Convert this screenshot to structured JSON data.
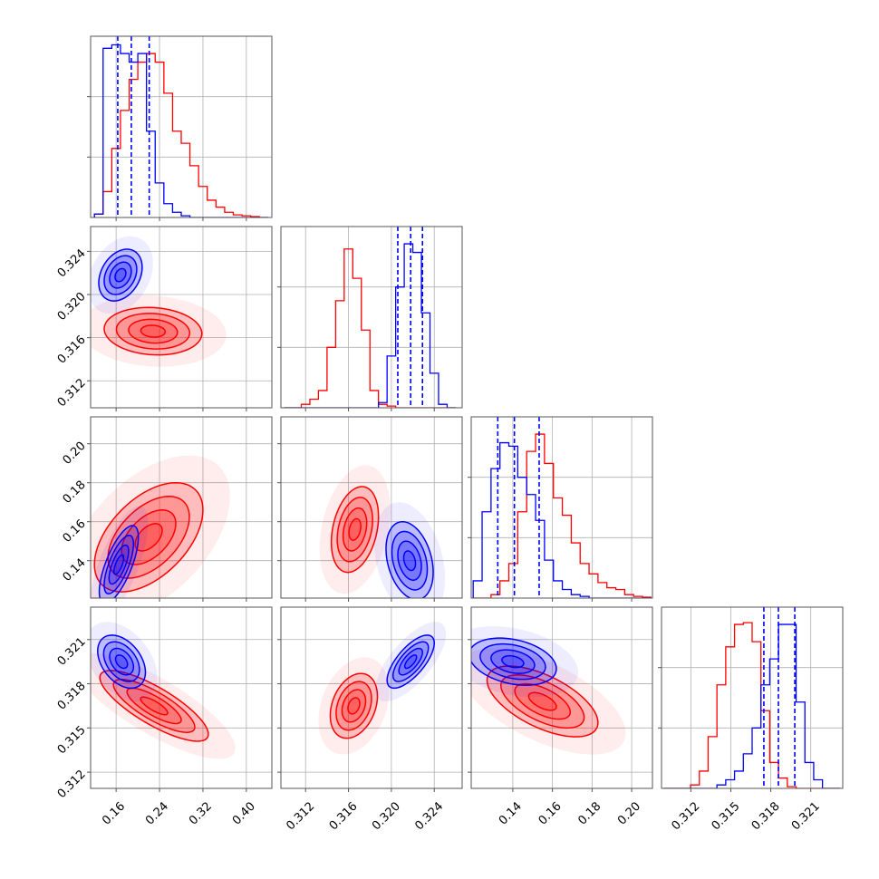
{
  "chart_data": {
    "type": "corner",
    "grid": true,
    "params": [
      {
        "xlim": [
          0.113,
          0.447
        ],
        "ylim": [
          0.113,
          0.447
        ],
        "ticks": [
          0.16,
          0.24,
          0.32,
          {
            "value": 0.4,
            "label": "0.40"
          }
        ]
      },
      {
        "xlim": [
          0.3097,
          0.3266
        ],
        "ylim": [
          0.3095,
          0.3263
        ],
        "ticks": [
          0.312,
          0.316,
          {
            "value": 0.32,
            "label": "0.320"
          },
          0.324
        ]
      },
      {
        "xlim": [
          0.119,
          0.2105
        ],
        "ylim": [
          0.1208,
          0.2138
        ],
        "ticks": [
          0.14,
          0.16,
          0.18,
          {
            "value": 0.2,
            "label": "0.20"
          }
        ]
      },
      {
        "xlim": [
          0.3098,
          0.3234
        ],
        "ylim": [
          0.3109,
          0.3232
        ],
        "ticks": [
          0.312,
          0.315,
          0.318,
          0.321
        ]
      }
    ],
    "hist": [
      {
        "bins": [
          0.12,
          0.136,
          0.152,
          0.168,
          0.184,
          0.2,
          0.216,
          0.232,
          0.248,
          0.264,
          0.28,
          0.296,
          0.312,
          0.328,
          0.344,
          0.36,
          0.376,
          0.392,
          0.408,
          0.424,
          0.44
        ],
        "ylim": [
          0,
          1.05
        ],
        "yticks": [
          0.35,
          0.7
        ],
        "series": [
          {
            "color": "#ff0000",
            "values": [
              0.02,
              0.15,
              0.4,
              0.62,
              0.8,
              0.9,
              0.95,
              0.9,
              0.72,
              0.5,
              0.43,
              0.3,
              0.18,
              0.1,
              0.06,
              0.03,
              0.015,
              0.01,
              0.005,
              0
            ]
          },
          {
            "color": "#0000ff",
            "values": [
              0.02,
              0.98,
              1.0,
              0.95,
              0.9,
              0.95,
              0.5,
              0.2,
              0.08,
              0.03,
              0.01,
              0,
              0,
              0,
              0,
              0,
              0,
              0,
              0,
              0
            ]
          }
        ],
        "quantiles": {
          "color": "#0000ff",
          "values": [
            0.163,
            0.188,
            0.221
          ]
        }
      },
      {
        "bins": [
          0.31,
          0.3108,
          0.3116,
          0.3124,
          0.3132,
          0.314,
          0.3148,
          0.3156,
          0.3164,
          0.3172,
          0.318,
          0.3188,
          0.3196,
          0.3204,
          0.3212,
          0.322,
          0.3228,
          0.3236,
          0.3244,
          0.3252,
          0.326
        ],
        "ylim": [
          0,
          1.05
        ],
        "yticks": [
          0.35,
          0.7
        ],
        "series": [
          {
            "color": "#ff0000",
            "values": [
              0,
              0,
              0.02,
              0.05,
              0.1,
              0.35,
              0.62,
              0.92,
              0.75,
              0.45,
              0.1,
              0.02,
              0.01,
              0,
              0,
              0,
              0,
              0,
              0,
              0
            ]
          },
          {
            "color": "#0000ff",
            "values": [
              0,
              0,
              0,
              0,
              0,
              0,
              0,
              0,
              0,
              0,
              0,
              0.03,
              0.3,
              0.7,
              0.95,
              0.9,
              0.55,
              0.2,
              0.02,
              0
            ]
          }
        ],
        "quantiles": {
          "color": "#0000ff",
          "values": [
            0.3206,
            0.3218,
            0.3229
          ]
        }
      },
      {
        "bins": [
          0.12,
          0.1245,
          0.129,
          0.1335,
          0.138,
          0.1425,
          0.147,
          0.1515,
          0.156,
          0.1605,
          0.165,
          0.1695,
          0.174,
          0.1785,
          0.183,
          0.1875,
          0.192,
          0.1965,
          0.201,
          0.2055,
          0.21
        ],
        "ylim": [
          0,
          1.05
        ],
        "yticks": [
          0.35,
          0.7
        ],
        "series": [
          {
            "color": "#ff0000",
            "values": [
              0,
              0,
              0.02,
              0.1,
              0.2,
              0.5,
              0.85,
              0.95,
              0.78,
              0.58,
              0.48,
              0.32,
              0.2,
              0.14,
              0.09,
              0.06,
              0.05,
              0.02,
              0.01,
              0.005
            ]
          },
          {
            "color": "#0000ff",
            "values": [
              0.1,
              0.5,
              0.75,
              0.9,
              0.88,
              0.7,
              0.6,
              0.45,
              0.22,
              0.1,
              0.05,
              0.02,
              0.01,
              0,
              0,
              0,
              0,
              0,
              0,
              0
            ]
          }
        ],
        "quantiles": {
          "color": "#0000ff",
          "values": [
            0.1324,
            0.1408,
            0.1533
          ]
        }
      },
      {
        "bins": [
          0.31,
          0.31066,
          0.31132,
          0.31198,
          0.31264,
          0.3133,
          0.31396,
          0.31462,
          0.31528,
          0.31594,
          0.3166,
          0.31726,
          0.31792,
          0.31858,
          0.31924,
          0.3199,
          0.32056,
          0.32122,
          0.32188,
          0.32254,
          0.3232
        ],
        "ylim": [
          0,
          1.05
        ],
        "yticks": [
          0.35,
          0.7
        ],
        "series": [
          {
            "color": "#ff0000",
            "values": [
              0,
              0,
              0,
              0.02,
              0.1,
              0.3,
              0.6,
              0.82,
              0.95,
              0.96,
              0.85,
              0.45,
              0.15,
              0.06,
              0.01,
              0,
              0,
              0,
              0,
              0
            ]
          },
          {
            "color": "#0000ff",
            "values": [
              0,
              0,
              0,
              0,
              0,
              0,
              0.02,
              0.05,
              0.1,
              0.2,
              0.35,
              0.6,
              0.75,
              0.95,
              0.95,
              0.5,
              0.15,
              0.05,
              0,
              0
            ]
          }
        ],
        "quantiles": {
          "color": "#0000ff",
          "values": [
            0.31748,
            0.31857,
            0.3198
          ]
        }
      }
    ],
    "levels": [
      0.5,
      1,
      1.5,
      2
    ],
    "cloud_sigma": 3,
    "pairs": [
      {
        "x_param": 0,
        "y_param": 1,
        "series": [
          {
            "color": "#ff0000",
            "mean": [
              0.228,
              0.3166
            ],
            "sd": [
              0.045,
              0.0011
            ],
            "rho": -0.1
          },
          {
            "color": "#0000ff",
            "mean": [
              0.168,
              0.3218
            ],
            "sd": [
              0.02,
              0.0012
            ],
            "rho": 0.3
          }
        ]
      },
      {
        "x_param": 0,
        "y_param": 2,
        "series": [
          {
            "color": "#ff0000",
            "mean": [
              0.22,
              0.152
            ],
            "sd": [
              0.05,
              0.014
            ],
            "rho": 0.5
          },
          {
            "color": "#0000ff",
            "mean": [
              0.165,
              0.138
            ],
            "sd": [
              0.018,
              0.01
            ],
            "rho": 0.7
          }
        ]
      },
      {
        "x_param": 0,
        "y_param": 3,
        "series": [
          {
            "color": "#ff0000",
            "mean": [
              0.23,
              0.3165
            ],
            "sd": [
              0.05,
              0.0012
            ],
            "rho": -0.8
          },
          {
            "color": "#0000ff",
            "mean": [
              0.17,
              0.3195
            ],
            "sd": [
              0.022,
              0.0009
            ],
            "rho": -0.4
          }
        ]
      },
      {
        "x_param": 1,
        "y_param": 2,
        "series": [
          {
            "color": "#ff0000",
            "mean": [
              0.3166,
              0.156
            ],
            "sd": [
              0.0011,
              0.011
            ],
            "rho": 0.3
          },
          {
            "color": "#0000ff",
            "mean": [
              0.3217,
              0.14
            ],
            "sd": [
              0.0011,
              0.01
            ],
            "rho": -0.3
          }
        ]
      },
      {
        "x_param": 1,
        "y_param": 3,
        "series": [
          {
            "color": "#ff0000",
            "mean": [
              0.3165,
              0.3165
            ],
            "sd": [
              0.0011,
              0.0011
            ],
            "rho": 0.3
          },
          {
            "color": "#0000ff",
            "mean": [
              0.3218,
              0.3195
            ],
            "sd": [
              0.0011,
              0.0009
            ],
            "rho": 0.7
          }
        ]
      },
      {
        "x_param": 2,
        "y_param": 3,
        "series": [
          {
            "color": "#ff0000",
            "mean": [
              0.155,
              0.3168
            ],
            "sd": [
              0.014,
              0.0012
            ],
            "rho": -0.6
          },
          {
            "color": "#0000ff",
            "mean": [
              0.14,
              0.3195
            ],
            "sd": [
              0.011,
              0.0008
            ],
            "rho": -0.3
          }
        ]
      }
    ]
  }
}
